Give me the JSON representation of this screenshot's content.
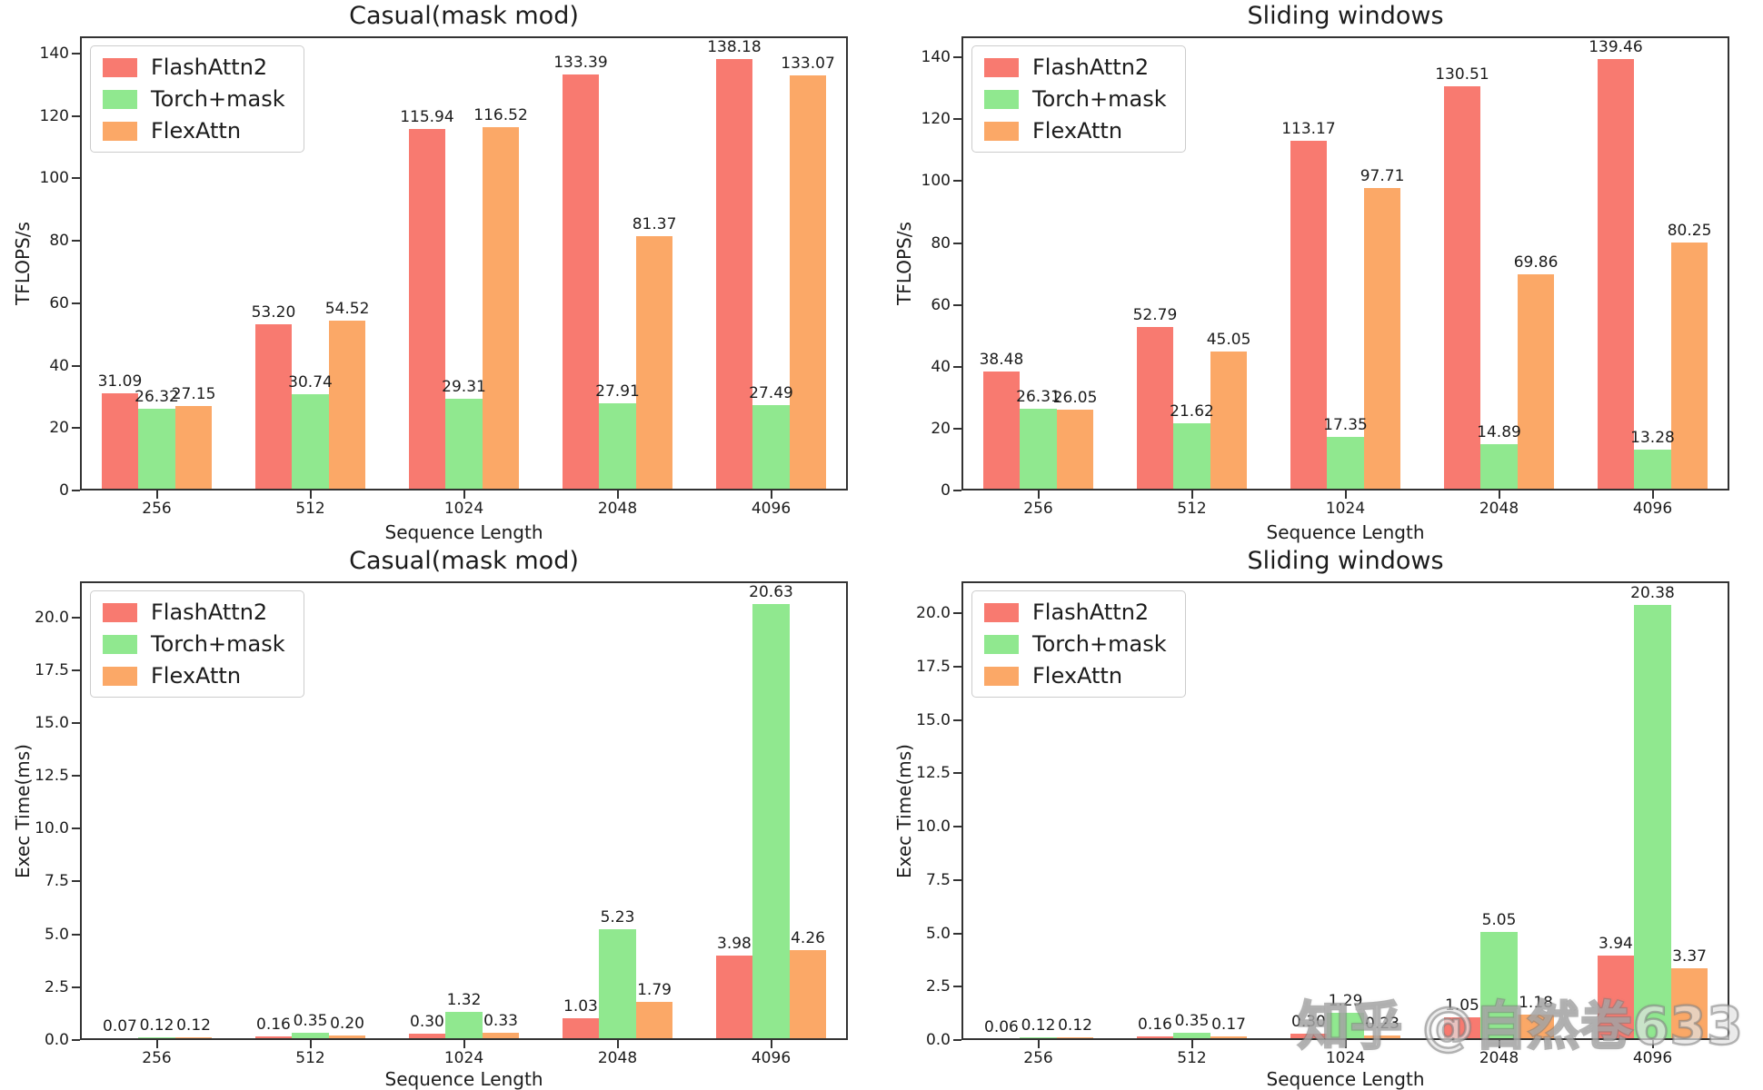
{
  "watermark": {
    "text": "知乎 @自然卷633"
  },
  "legend": {
    "items": [
      "FlashAttn2",
      "Torch+mask",
      "FlexAttn"
    ]
  },
  "palette": {
    "FlashAttn2": "#f87a70",
    "Torch+mask": "#90e88f",
    "FlexAttn": "#fba867",
    "spine": "#333333",
    "text": "#1c1c1c",
    "legend_border": "#cccccc"
  },
  "chart_data": [
    {
      "type": "bar",
      "title": "Casual(mask mod)",
      "xlabel": "Sequence Length",
      "ylabel": "TFLOPS/s",
      "categories": [
        "256",
        "512",
        "1024",
        "2048",
        "4096"
      ],
      "series": [
        {
          "name": "FlashAttn2",
          "values": [
            31.09,
            53.2,
            115.94,
            133.39,
            138.18
          ]
        },
        {
          "name": "Torch+mask",
          "values": [
            26.32,
            30.74,
            29.31,
            27.91,
            27.49
          ]
        },
        {
          "name": "FlexAttn",
          "values": [
            27.15,
            54.52,
            116.52,
            81.37,
            133.07
          ]
        }
      ],
      "ylim": [
        0,
        145.5
      ],
      "ytick_values": [
        0,
        20,
        40,
        60,
        80,
        100,
        120,
        140
      ],
      "ytick_labels": [
        "0",
        "20",
        "40",
        "60",
        "80",
        "100",
        "120",
        "140"
      ],
      "legend_position": "upper left",
      "grid": false,
      "bar_label_decimals": 2
    },
    {
      "type": "bar",
      "title": "Sliding windows",
      "xlabel": "Sequence Length",
      "ylabel": "TFLOPS/s",
      "categories": [
        "256",
        "512",
        "1024",
        "2048",
        "4096"
      ],
      "series": [
        {
          "name": "FlashAttn2",
          "values": [
            38.48,
            52.79,
            113.17,
            130.51,
            139.46
          ]
        },
        {
          "name": "Torch+mask",
          "values": [
            26.31,
            21.62,
            17.35,
            14.89,
            13.28
          ]
        },
        {
          "name": "FlexAttn",
          "values": [
            26.05,
            45.05,
            97.71,
            69.86,
            80.25
          ]
        }
      ],
      "ylim": [
        0,
        146.8
      ],
      "ytick_values": [
        0,
        20,
        40,
        60,
        80,
        100,
        120,
        140
      ],
      "ytick_labels": [
        "0",
        "20",
        "40",
        "60",
        "80",
        "100",
        "120",
        "140"
      ],
      "legend_position": "upper left",
      "grid": false,
      "bar_label_decimals": 2
    },
    {
      "type": "bar",
      "title": "Casual(mask mod)",
      "xlabel": "Sequence Length",
      "ylabel": "Exec Time(ms)",
      "categories": [
        "256",
        "512",
        "1024",
        "2048",
        "4096"
      ],
      "series": [
        {
          "name": "FlashAttn2",
          "values": [
            0.07,
            0.16,
            0.3,
            1.03,
            3.98
          ]
        },
        {
          "name": "Torch+mask",
          "values": [
            0.12,
            0.35,
            1.32,
            5.23,
            20.63
          ]
        },
        {
          "name": "FlexAttn",
          "values": [
            0.12,
            0.2,
            0.33,
            1.79,
            4.26
          ]
        }
      ],
      "ylim": [
        0,
        21.7
      ],
      "ytick_values": [
        0,
        2.5,
        5,
        7.5,
        10,
        12.5,
        15,
        17.5,
        20
      ],
      "ytick_labels": [
        "0.0",
        "2.5",
        "5.0",
        "7.5",
        "10.0",
        "12.5",
        "15.0",
        "17.5",
        "20.0"
      ],
      "legend_position": "upper left",
      "grid": false,
      "bar_label_decimals": 2
    },
    {
      "type": "bar",
      "title": "Sliding windows",
      "xlabel": "Sequence Length",
      "ylabel": "Exec Time(ms)",
      "categories": [
        "256",
        "512",
        "1024",
        "2048",
        "4096"
      ],
      "series": [
        {
          "name": "FlashAttn2",
          "values": [
            0.06,
            0.16,
            0.3,
            1.05,
            3.94
          ]
        },
        {
          "name": "Torch+mask",
          "values": [
            0.12,
            0.35,
            1.29,
            5.05,
            20.38
          ]
        },
        {
          "name": "FlexAttn",
          "values": [
            0.12,
            0.17,
            0.23,
            1.18,
            3.37
          ]
        }
      ],
      "ylim": [
        0,
        21.5
      ],
      "ytick_values": [
        0,
        2.5,
        5,
        7.5,
        10,
        12.5,
        15,
        17.5,
        20
      ],
      "ytick_labels": [
        "0.0",
        "2.5",
        "5.0",
        "7.5",
        "10.0",
        "12.5",
        "15.0",
        "17.5",
        "20.0"
      ],
      "legend_position": "upper left",
      "grid": false,
      "bar_label_decimals": 2
    }
  ]
}
